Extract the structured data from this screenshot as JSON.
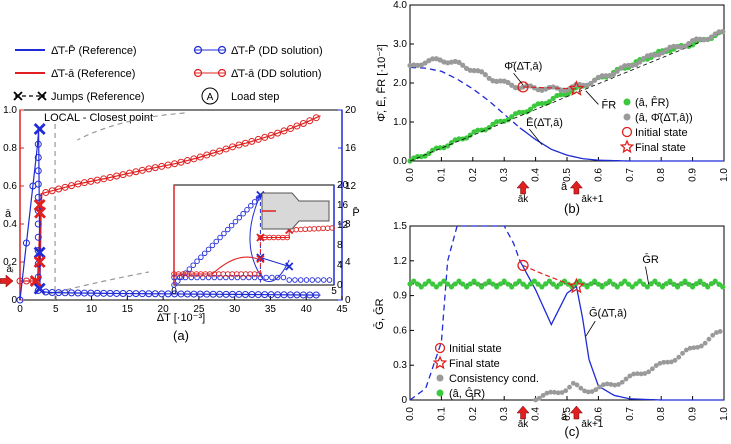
{
  "colors": {
    "blue": "#1f2bd6",
    "red": "#e02020",
    "green": "#3cc83c",
    "gray": "#9a9a9a",
    "black": "#000000",
    "dashgray": "#9a9a9a"
  },
  "chart_data": [
    {
      "panel": "a",
      "type": "line",
      "panel_label": "(a)",
      "xlabel": "Δ̄T [·10⁻³]",
      "ylabel_left": "ā",
      "ylabel_right": "P̄",
      "xlim": [
        0,
        45
      ],
      "ylim_left": [
        0,
        1
      ],
      "ylim_right": [
        0,
        20
      ],
      "xticks": [
        "0",
        "5",
        "10",
        "15",
        "20",
        "25",
        "30",
        "35",
        "40",
        "45"
      ],
      "yticks_left": [
        "0",
        "0.2",
        "0.4",
        "0.6",
        "0.8",
        "1.0"
      ],
      "yticks_right": [
        "0",
        "4",
        "8",
        "12",
        "16",
        "20"
      ],
      "annotation": "LOCAL - Closest point",
      "marker_left": "āᵢ",
      "legend": [
        {
          "label": "Δ̄T-P̄ (Reference)",
          "style": "blue-line"
        },
        {
          "label": "Δ̄T-P̄ (DD solution)",
          "style": "blue-circles"
        },
        {
          "label": "Δ̄T-ā (Reference)",
          "style": "red-line"
        },
        {
          "label": "Δ̄T-ā (DD solution)",
          "style": "red-circles"
        },
        {
          "label": "Jumps (Reference)",
          "style": "black-x"
        },
        {
          "label": "Load step",
          "style": "circled-A",
          "symbol": "A"
        }
      ],
      "series": [
        {
          "name": "Δ̄T-ā (DD solution)",
          "axis": "left",
          "x": [
            0,
            0.5,
            1,
            1.5,
            2,
            2.5,
            2.8,
            3,
            3.5,
            4,
            5,
            6,
            8,
            10,
            12,
            15,
            18,
            20,
            22,
            25,
            28,
            30,
            32,
            35,
            38,
            40,
            42
          ],
          "y": [
            0.1,
            0.1,
            0.1,
            0.1,
            0.1,
            0.1,
            0.1,
            0.56,
            0.565,
            0.57,
            0.58,
            0.59,
            0.61,
            0.625,
            0.64,
            0.665,
            0.69,
            0.705,
            0.72,
            0.75,
            0.785,
            0.81,
            0.83,
            0.865,
            0.905,
            0.935,
            0.97
          ]
        },
        {
          "name": "Δ̄T-P̄ (DD solution)",
          "axis": "right",
          "x": [
            0,
            0.3,
            0.6,
            0.9,
            1.2,
            1.5,
            1.8,
            2.1,
            2.4,
            2.6,
            2.8,
            3,
            3.5,
            4,
            5,
            6,
            8,
            10,
            12,
            15,
            18,
            20,
            22,
            25,
            28,
            30,
            32,
            35,
            38,
            40,
            42
          ],
          "y": [
            0,
            2,
            4,
            6,
            8,
            10,
            12,
            14,
            16,
            17.8,
            1.5,
            0.9,
            0.85,
            0.8,
            0.78,
            0.76,
            0.74,
            0.72,
            0.7,
            0.68,
            0.66,
            0.65,
            0.64,
            0.62,
            0.6,
            0.59,
            0.58,
            0.56,
            0.54,
            0.53,
            0.52
          ]
        },
        {
          "name": "Jumps (Reference)",
          "axis": "right",
          "x": [
            2.75,
            2.75,
            2.75,
            2.75,
            2.75
          ],
          "y": [
            18,
            10,
            5,
            4,
            1.2
          ]
        }
      ],
      "inset": {
        "xticks": [
          "0",
          "5"
        ],
        "yticks_right": [
          "0",
          "4",
          "8",
          "12",
          "16",
          "20"
        ]
      }
    },
    {
      "panel": "b",
      "type": "scatter",
      "panel_label": "(b)",
      "xlabel": "â",
      "ylabel": "Φ̄, Ē, F̄R [·10⁻²]",
      "xlim": [
        0,
        1
      ],
      "ylim": [
        0,
        4
      ],
      "xticks": [
        "0.0",
        "0.1",
        "0.2",
        "0.3",
        "0.4",
        "0.5",
        "0.6",
        "0.7",
        "0.8",
        "0.9",
        "1.0"
      ],
      "yticks": [
        "0.0",
        "1.0",
        "2.0",
        "3.0",
        "4.0"
      ],
      "below_axis": [
        "āk",
        "āk+1"
      ],
      "labels": {
        "phi": "Φ̄(Δ̄T,ā)",
        "fr": "F̄R",
        "e": "Ē(Δ̄T,ā)"
      },
      "legend": [
        {
          "label": "(â, F̂R)",
          "style": "green-dot"
        },
        {
          "label": "(â, Φ̂(Δ̄T,â))",
          "style": "gray-dot"
        },
        {
          "label": "Initial state",
          "style": "red-circle"
        },
        {
          "label": "Final state",
          "style": "red-star"
        }
      ],
      "series": [
        {
          "name": "E",
          "style": "blue-dashed-solid",
          "x": [
            0,
            0.05,
            0.1,
            0.15,
            0.2,
            0.25,
            0.3,
            0.35,
            0.4,
            0.45,
            0.5,
            0.55,
            0.6,
            0.7,
            0.8,
            1.0
          ],
          "y": [
            2.4,
            2.38,
            2.3,
            2.1,
            1.85,
            1.55,
            1.2,
            0.85,
            0.55,
            0.3,
            0.15,
            0.06,
            0.02,
            0,
            0,
            0
          ]
        },
        {
          "name": "FR",
          "style": "green",
          "x": [
            0,
            0.1,
            0.2,
            0.3,
            0.4,
            0.5,
            0.53,
            0.6,
            0.7,
            0.8,
            0.9,
            1.0
          ],
          "y": [
            0,
            0.35,
            0.7,
            1.05,
            1.4,
            1.75,
            1.85,
            2.1,
            2.45,
            2.8,
            3.0,
            3.3
          ]
        },
        {
          "name": "Phi",
          "style": "gray",
          "x": [
            0,
            0.05,
            0.1,
            0.15,
            0.2,
            0.25,
            0.3,
            0.35,
            0.4,
            0.45,
            0.5,
            0.55,
            0.6,
            0.7,
            0.8,
            0.9,
            1.0
          ],
          "y": [
            2.4,
            2.55,
            2.6,
            2.5,
            2.35,
            2.15,
            2.0,
            1.9,
            1.87,
            1.85,
            1.85,
            1.95,
            2.1,
            2.45,
            2.8,
            3.05,
            3.3
          ]
        }
      ],
      "initial_state": {
        "x": 0.36,
        "y": 1.9
      },
      "final_state": {
        "x": 0.53,
        "y": 1.85
      }
    },
    {
      "panel": "c",
      "type": "scatter",
      "panel_label": "(c)",
      "xlabel": "â",
      "ylabel": "Ḡ, ḠR",
      "xlim": [
        0,
        1
      ],
      "ylim": [
        0,
        1.5
      ],
      "xticks": [
        "0.0",
        "0.1",
        "0.2",
        "0.3",
        "0.4",
        "0.5",
        "0.6",
        "0.7",
        "0.8",
        "0.9",
        "1.0"
      ],
      "yticks": [
        "0",
        "0.3",
        "0.6",
        "0.9",
        "1.2",
        "1.5"
      ],
      "below_axis": [
        "āk",
        "āk+1"
      ],
      "labels": {
        "gr": "ḠR",
        "g": "Ḡ(Δ̄T,ā)"
      },
      "legend": [
        {
          "label": "Initial state",
          "style": "red-circle"
        },
        {
          "label": "Final state",
          "style": "red-star"
        },
        {
          "label": "Consistency cond.",
          "style": "gray-dot"
        },
        {
          "label": "(â, ĜR)",
          "style": "green-dot"
        }
      ],
      "series": [
        {
          "name": "G",
          "style": "blue",
          "x": [
            0,
            0.05,
            0.1,
            0.12,
            0.15,
            0.2,
            0.25,
            0.3,
            0.33,
            0.35,
            0.4,
            0.45,
            0.5,
            0.53,
            0.55,
            0.57,
            0.6,
            0.65,
            0.7,
            0.8,
            1.0
          ],
          "y": [
            0,
            0.1,
            0.5,
            1.2,
            1.5,
            1.5,
            1.5,
            1.5,
            1.35,
            1.2,
            0.95,
            0.65,
            0.92,
            0.98,
            0.7,
            0.35,
            0.12,
            0.04,
            0.01,
            0,
            0
          ]
        },
        {
          "name": "GR",
          "style": "green-dots",
          "x": [
            0,
            0.1,
            0.2,
            0.3,
            0.4,
            0.5,
            0.6,
            0.7,
            0.8,
            0.9,
            1.0
          ],
          "y": [
            1.0,
            1.01,
            0.99,
            1.0,
            1.0,
            1.01,
            0.99,
            1.0,
            1.01,
            1.0,
            0.99
          ]
        },
        {
          "name": "Consistency",
          "style": "gray-dots",
          "x": [
            0.4,
            0.45,
            0.5,
            0.52,
            0.55,
            0.6,
            0.65,
            0.7,
            0.75,
            0.8,
            0.85,
            0.9,
            0.95,
            1.0
          ],
          "y": [
            0.02,
            0.05,
            0.1,
            0.13,
            0.08,
            0.1,
            0.14,
            0.19,
            0.25,
            0.3,
            0.37,
            0.44,
            0.52,
            0.6
          ]
        }
      ],
      "initial_state": {
        "x": 0.36,
        "y": 1.16
      },
      "final_state": {
        "x": 0.53,
        "y": 0.98
      }
    }
  ]
}
